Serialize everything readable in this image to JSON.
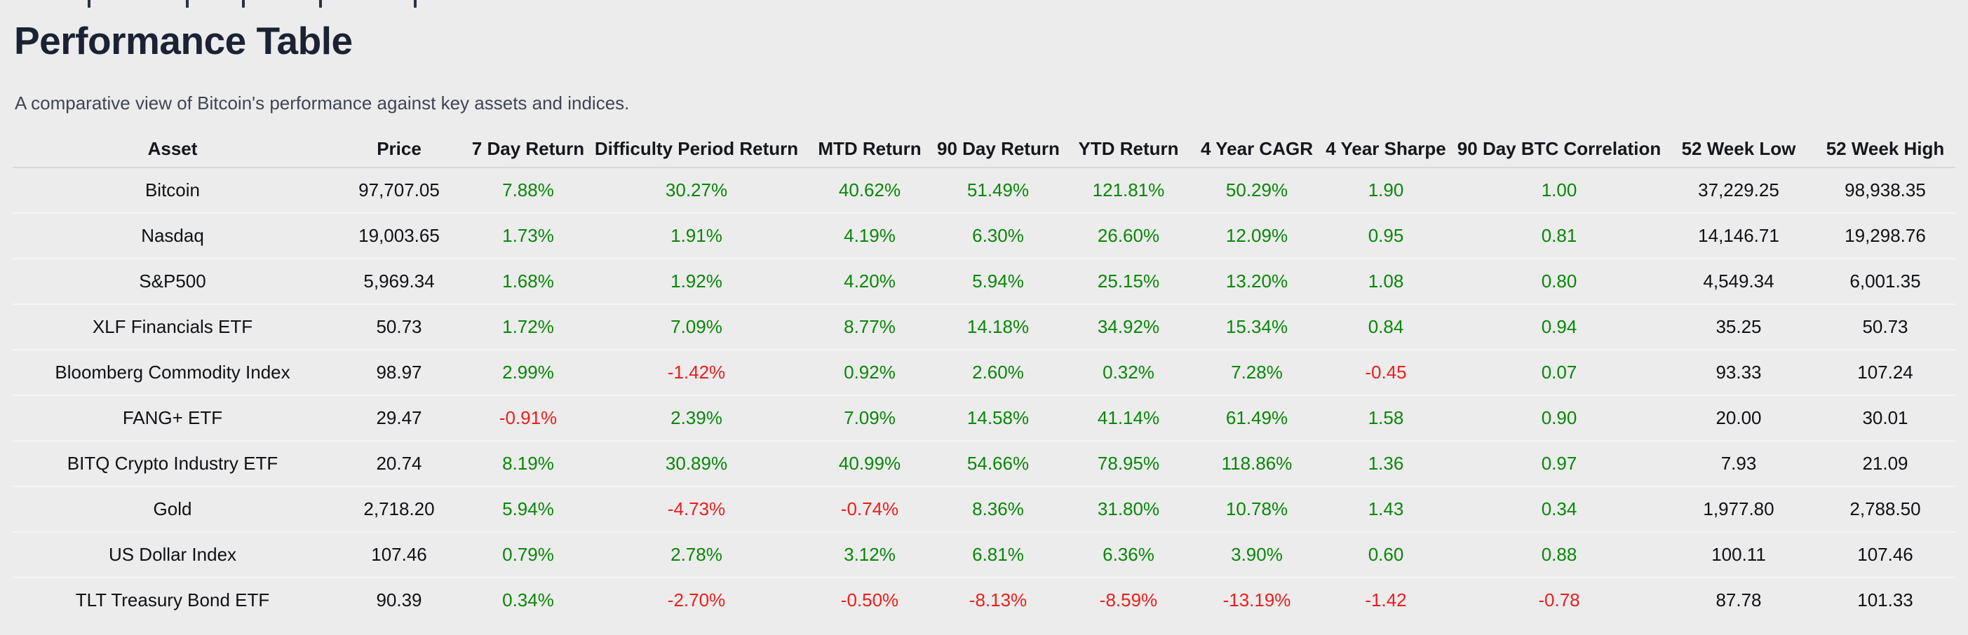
{
  "page": {
    "title": "Performance Table",
    "subtitle": "A comparative view of Bitcoin's performance against key assets and indices."
  },
  "colors": {
    "background": "#ececec",
    "positive": "#088708",
    "negative": "#ee1d1d",
    "heading": "#1b2233",
    "body_text": "#0f1115"
  },
  "table": {
    "columns": [
      "Asset",
      "Price",
      "7 Day Return",
      "Difficulty Period Return",
      "MTD Return",
      "90 Day Return",
      "YTD Return",
      "4 Year CAGR",
      "4 Year Sharpe",
      "90 Day BTC Correlation",
      "52 Week Low",
      "52 Week High"
    ],
    "colored_columns": [
      2,
      3,
      4,
      5,
      6,
      7,
      8,
      9
    ],
    "rows": [
      [
        "Bitcoin",
        "97,707.05",
        "7.88%",
        "30.27%",
        "40.62%",
        "51.49%",
        "121.81%",
        "50.29%",
        "1.90",
        "1.00",
        "37,229.25",
        "98,938.35"
      ],
      [
        "Nasdaq",
        "19,003.65",
        "1.73%",
        "1.91%",
        "4.19%",
        "6.30%",
        "26.60%",
        "12.09%",
        "0.95",
        "0.81",
        "14,146.71",
        "19,298.76"
      ],
      [
        "S&P500",
        "5,969.34",
        "1.68%",
        "1.92%",
        "4.20%",
        "5.94%",
        "25.15%",
        "13.20%",
        "1.08",
        "0.80",
        "4,549.34",
        "6,001.35"
      ],
      [
        "XLF Financials ETF",
        "50.73",
        "1.72%",
        "7.09%",
        "8.77%",
        "14.18%",
        "34.92%",
        "15.34%",
        "0.84",
        "0.94",
        "35.25",
        "50.73"
      ],
      [
        "Bloomberg Commodity Index",
        "98.97",
        "2.99%",
        "-1.42%",
        "0.92%",
        "2.60%",
        "0.32%",
        "7.28%",
        "-0.45",
        "0.07",
        "93.33",
        "107.24"
      ],
      [
        "FANG+ ETF",
        "29.47",
        "-0.91%",
        "2.39%",
        "7.09%",
        "14.58%",
        "41.14%",
        "61.49%",
        "1.58",
        "0.90",
        "20.00",
        "30.01"
      ],
      [
        "BITQ Crypto Industry ETF",
        "20.74",
        "8.19%",
        "30.89%",
        "40.99%",
        "54.66%",
        "78.95%",
        "118.86%",
        "1.36",
        "0.97",
        "7.93",
        "21.09"
      ],
      [
        "Gold",
        "2,718.20",
        "5.94%",
        "-4.73%",
        "-0.74%",
        "8.36%",
        "31.80%",
        "10.78%",
        "1.43",
        "0.34",
        "1,977.80",
        "2,788.50"
      ],
      [
        "US Dollar Index",
        "107.46",
        "0.79%",
        "2.78%",
        "3.12%",
        "6.81%",
        "6.36%",
        "3.90%",
        "0.60",
        "0.88",
        "100.11",
        "107.46"
      ],
      [
        "TLT Treasury Bond ETF",
        "90.39",
        "0.34%",
        "-2.70%",
        "-0.50%",
        "-8.13%",
        "-8.59%",
        "-13.19%",
        "-1.42",
        "-0.78",
        "87.78",
        "101.33"
      ]
    ]
  },
  "chart_data": {
    "type": "table",
    "title": "Performance Table",
    "columns": [
      "Asset",
      "Price",
      "7 Day Return",
      "Difficulty Period Return",
      "MTD Return",
      "90 Day Return",
      "YTD Return",
      "4 Year CAGR",
      "4 Year Sharpe",
      "90 Day BTC Correlation",
      "52 Week Low",
      "52 Week High"
    ],
    "rows": [
      [
        "Bitcoin",
        "97,707.05",
        "7.88%",
        "30.27%",
        "40.62%",
        "51.49%",
        "121.81%",
        "50.29%",
        "1.90",
        "1.00",
        "37,229.25",
        "98,938.35"
      ],
      [
        "Nasdaq",
        "19,003.65",
        "1.73%",
        "1.91%",
        "4.19%",
        "6.30%",
        "26.60%",
        "12.09%",
        "0.95",
        "0.81",
        "14,146.71",
        "19,298.76"
      ],
      [
        "S&P500",
        "5,969.34",
        "1.68%",
        "1.92%",
        "4.20%",
        "5.94%",
        "25.15%",
        "13.20%",
        "1.08",
        "0.80",
        "4,549.34",
        "6,001.35"
      ],
      [
        "XLF Financials ETF",
        "50.73",
        "1.72%",
        "7.09%",
        "8.77%",
        "14.18%",
        "34.92%",
        "15.34%",
        "0.84",
        "0.94",
        "35.25",
        "50.73"
      ],
      [
        "Bloomberg Commodity Index",
        "98.97",
        "2.99%",
        "-1.42%",
        "0.92%",
        "2.60%",
        "0.32%",
        "7.28%",
        "-0.45",
        "0.07",
        "93.33",
        "107.24"
      ],
      [
        "FANG+ ETF",
        "29.47",
        "-0.91%",
        "2.39%",
        "7.09%",
        "14.58%",
        "41.14%",
        "61.49%",
        "1.58",
        "0.90",
        "20.00",
        "30.01"
      ],
      [
        "BITQ Crypto Industry ETF",
        "20.74",
        "8.19%",
        "30.89%",
        "40.99%",
        "54.66%",
        "78.95%",
        "118.86%",
        "1.36",
        "0.97",
        "7.93",
        "21.09"
      ],
      [
        "Gold",
        "2,718.20",
        "5.94%",
        "-4.73%",
        "-0.74%",
        "8.36%",
        "31.80%",
        "10.78%",
        "1.43",
        "0.34",
        "1,977.80",
        "2,788.50"
      ],
      [
        "US Dollar Index",
        "107.46",
        "0.79%",
        "2.78%",
        "3.12%",
        "6.81%",
        "6.36%",
        "3.90%",
        "0.60",
        "0.88",
        "100.11",
        "107.46"
      ],
      [
        "TLT Treasury Bond ETF",
        "90.39",
        "0.34%",
        "-2.70%",
        "-0.50%",
        "-8.13%",
        "-8.59%",
        "-13.19%",
        "-1.42",
        "-0.78",
        "87.78",
        "101.33"
      ]
    ]
  }
}
